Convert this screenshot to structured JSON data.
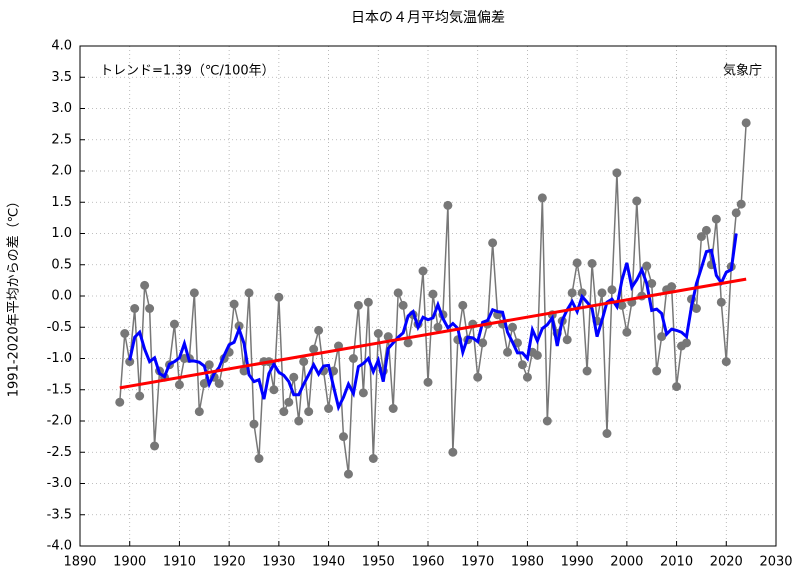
{
  "chart_data": {
    "type": "line",
    "title": "日本の４月平均気温偏差",
    "y_label": "1991-2020年平均からの差（℃）",
    "annotations": [
      "トレンド=1.39（℃/100年）",
      "気象庁"
    ],
    "x": [
      1898,
      1899,
      1900,
      1901,
      1902,
      1903,
      1904,
      1905,
      1906,
      1907,
      1908,
      1909,
      1910,
      1911,
      1912,
      1913,
      1914,
      1915,
      1916,
      1917,
      1918,
      1919,
      1920,
      1921,
      1922,
      1923,
      1924,
      1925,
      1926,
      1927,
      1928,
      1929,
      1930,
      1931,
      1932,
      1933,
      1934,
      1935,
      1936,
      1937,
      1938,
      1939,
      1940,
      1941,
      1942,
      1943,
      1944,
      1945,
      1946,
      1947,
      1948,
      1949,
      1950,
      1951,
      1952,
      1953,
      1954,
      1955,
      1956,
      1957,
      1958,
      1959,
      1960,
      1961,
      1962,
      1963,
      1964,
      1965,
      1966,
      1967,
      1968,
      1969,
      1970,
      1971,
      1972,
      1973,
      1974,
      1975,
      1976,
      1977,
      1978,
      1979,
      1980,
      1981,
      1982,
      1983,
      1984,
      1985,
      1986,
      1987,
      1988,
      1989,
      1990,
      1991,
      1992,
      1993,
      1994,
      1995,
      1996,
      1997,
      1998,
      1999,
      2000,
      2001,
      2002,
      2003,
      2004,
      2005,
      2006,
      2007,
      2008,
      2009,
      2010,
      2011,
      2012,
      2013,
      2014,
      2015,
      2016,
      2017,
      2018,
      2019,
      2020,
      2021,
      2022,
      2023,
      2024
    ],
    "series": [
      {
        "color": "#777777",
        "markers": true,
        "values": [
          -1.7,
          -0.6,
          -1.05,
          -0.2,
          -1.6,
          0.17,
          -0.2,
          -2.4,
          -1.2,
          -1.3,
          -1.1,
          -0.45,
          -1.42,
          -1.0,
          -1.0,
          0.05,
          -1.85,
          -1.4,
          -1.1,
          -1.3,
          -1.4,
          -1.0,
          -0.9,
          -0.13,
          -0.48,
          -1.2,
          0.05,
          -2.05,
          -2.6,
          -1.05,
          -1.05,
          -1.5,
          -0.02,
          -1.85,
          -1.7,
          -1.3,
          -2.0,
          -1.05,
          -1.85,
          -0.85,
          -0.55,
          -1.2,
          -1.8,
          -1.2,
          -0.8,
          -2.25,
          -2.85,
          -1.0,
          -0.15,
          -1.55,
          -0.1,
          -2.6,
          -0.6,
          -1.2,
          -0.65,
          -1.8,
          0.05,
          -0.15,
          -0.75,
          -0.3,
          -0.45,
          0.4,
          -1.38,
          0.03,
          -0.5,
          -0.3,
          1.45,
          -2.5,
          -0.7,
          -0.15,
          -0.7,
          -0.45,
          -1.3,
          -0.75,
          -0.45,
          0.85,
          -0.3,
          -0.45,
          -0.9,
          -0.5,
          -0.75,
          -1.1,
          -1.3,
          -0.9,
          -0.95,
          1.57,
          -2.0,
          -0.3,
          -0.6,
          -0.4,
          -0.7,
          0.05,
          0.53,
          0.05,
          -1.2,
          0.52,
          -0.4,
          0.05,
          -2.2,
          0.1,
          1.97,
          -0.15,
          -0.58,
          -0.1,
          1.52,
          0.0,
          0.48,
          0.2,
          -1.2,
          -0.65,
          0.1,
          0.15,
          -1.45,
          -0.8,
          -0.75,
          -0.05,
          -0.2,
          0.95,
          1.05,
          0.5,
          1.23,
          -0.1,
          -1.05,
          0.47,
          1.33,
          1.47,
          2.77
        ]
      },
      {
        "color": "#0000ff",
        "markers": false,
        "values": [
          null,
          null,
          -1.03,
          -0.66,
          -0.58,
          -0.85,
          -1.05,
          -0.99,
          -1.24,
          -1.29,
          -1.09,
          -1.05,
          -0.99,
          -0.76,
          -1.04,
          -1.04,
          -1.06,
          -1.12,
          -1.41,
          -1.24,
          -1.14,
          -0.95,
          -0.78,
          -0.74,
          -0.53,
          -0.76,
          -1.26,
          -1.37,
          -1.34,
          -1.65,
          -1.24,
          -1.09,
          -1.22,
          -1.27,
          -1.37,
          -1.58,
          -1.58,
          -1.41,
          -1.26,
          -1.1,
          -1.25,
          -1.12,
          -1.11,
          -1.45,
          -1.78,
          -1.62,
          -1.41,
          -1.56,
          -1.13,
          -1.08,
          -1.0,
          -1.21,
          -1.03,
          -1.37,
          -0.84,
          -0.75,
          -0.66,
          -0.59,
          -0.32,
          -0.25,
          -0.5,
          -0.34,
          -0.38,
          -0.35,
          -0.14,
          -0.36,
          -0.51,
          -0.44,
          -0.52,
          -0.9,
          -0.66,
          -0.67,
          -0.73,
          -0.42,
          -0.39,
          -0.22,
          -0.25,
          -0.26,
          -0.58,
          -0.74,
          -0.91,
          -0.91,
          -1.0,
          -0.54,
          -0.72,
          -0.52,
          -0.46,
          -0.35,
          -0.8,
          -0.39,
          -0.22,
          -0.09,
          -0.25,
          -0.01,
          -0.1,
          -0.2,
          -0.65,
          -0.39,
          -0.1,
          -0.05,
          -0.17,
          0.25,
          0.53,
          0.14,
          0.26,
          0.42,
          0.2,
          -0.23,
          -0.21,
          -0.28,
          -0.61,
          -0.53,
          -0.55,
          -0.58,
          -0.65,
          -0.17,
          0.2,
          0.45,
          0.71,
          0.73,
          0.33,
          0.21,
          0.38,
          0.42,
          1.0,
          null,
          null
        ]
      },
      {
        "color": "#ff0000",
        "markers": false,
        "x": [
          1898,
          2024
        ],
        "values": [
          -1.47,
          0.27
        ]
      }
    ],
    "xlim": [
      1890,
      2030
    ],
    "xticks": [
      1890,
      1900,
      1910,
      1920,
      1930,
      1940,
      1950,
      1960,
      1970,
      1980,
      1990,
      2000,
      2010,
      2020,
      2030
    ],
    "ylim": [
      -4.0,
      4.0
    ],
    "yticks": [
      {
        "value": -4.0,
        "label": "-4.0"
      },
      {
        "value": -3.5,
        "label": "-3.5"
      },
      {
        "value": -3.0,
        "label": "-3.0"
      },
      {
        "value": -2.5,
        "label": "-2.5"
      },
      {
        "value": -2.0,
        "label": "-2.0"
      },
      {
        "value": -1.5,
        "label": "-1.5"
      },
      {
        "value": -1.0,
        "label": "-1.0"
      },
      {
        "value": -0.5,
        "label": "-0.5"
      },
      {
        "value": 0.0,
        "label": "0.0"
      },
      {
        "value": 0.5,
        "label": "0.5"
      },
      {
        "value": 1.0,
        "label": "1.0"
      },
      {
        "value": 1.5,
        "label": "1.5"
      },
      {
        "value": 2.0,
        "label": "2.0"
      },
      {
        "value": 2.5,
        "label": "2.5"
      },
      {
        "value": 3.0,
        "label": "3.0"
      },
      {
        "value": 3.5,
        "label": "3.5"
      },
      {
        "value": 4.0,
        "label": "4.0"
      }
    ],
    "grid": true
  }
}
